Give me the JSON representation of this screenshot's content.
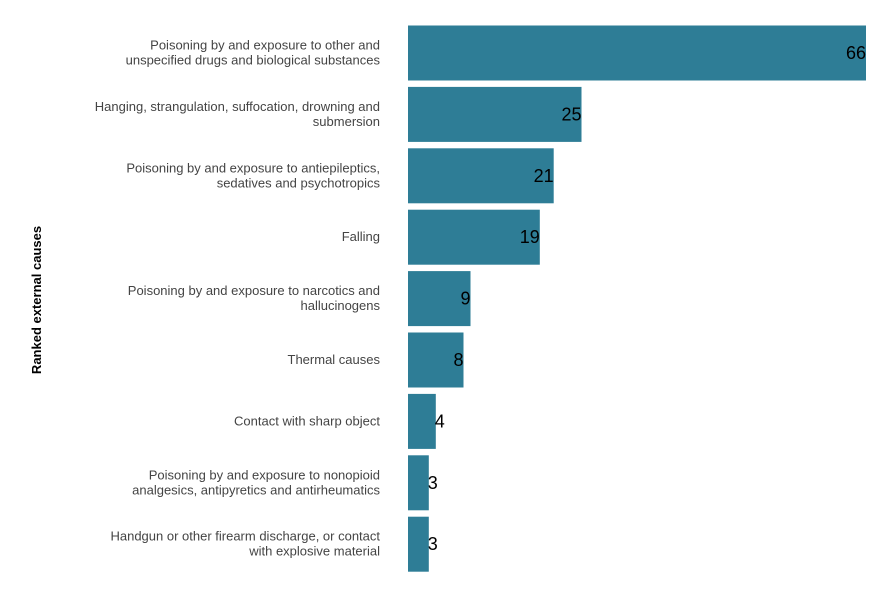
{
  "chart_data": {
    "type": "bar",
    "orientation": "horizontal",
    "ylabel": "Ranked external causes",
    "xlabel": "",
    "categories": [
      [
        "Poisoning by and exposure to other and",
        "unspecified drugs and biological substances"
      ],
      [
        "Hanging, strangulation, suffocation, drowning and",
        "submersion"
      ],
      [
        "Poisoning by and exposure to antiepileptics,",
        "sedatives and psychotropics"
      ],
      [
        "Falling"
      ],
      [
        "Poisoning by and exposure to narcotics and",
        "hallucinogens"
      ],
      [
        "Thermal causes"
      ],
      [
        "Contact with sharp object"
      ],
      [
        "Poisoning by and exposure to nonopioid",
        "analgesics, antipyretics and antirheumatics"
      ],
      [
        "Handgun or other firearm discharge, or contact",
        "with explosive material"
      ]
    ],
    "values": [
      66,
      25,
      21,
      19,
      9,
      8,
      4,
      3,
      3
    ],
    "xlim": [
      0,
      66
    ],
    "grid": false,
    "bar_color": "#2e7d96"
  }
}
